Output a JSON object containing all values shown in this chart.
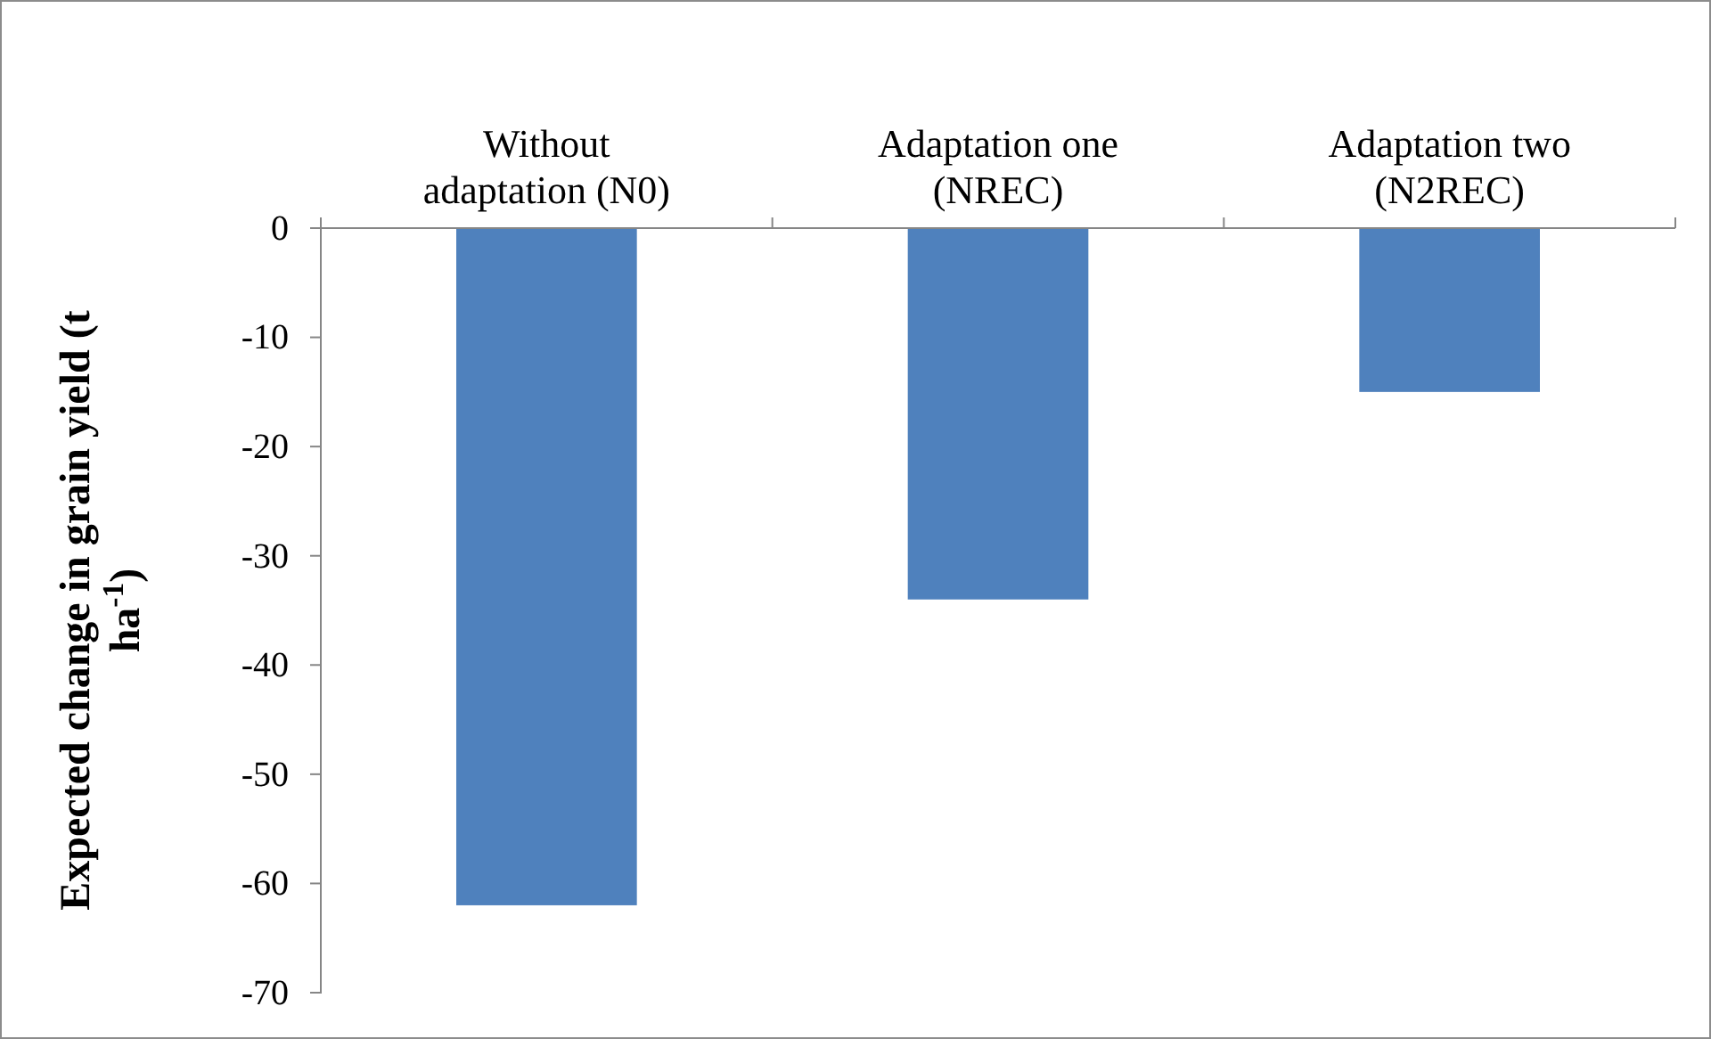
{
  "chart_data": {
    "type": "bar",
    "categories": [
      "Without adaptation (N0)",
      "Adaptation one (NREC)",
      "Adaptation two (N2REC)"
    ],
    "values": [
      -62,
      -34,
      -15
    ],
    "color": "#4f81bd",
    "ylabel": "Expected change in grain yield (t ha$^{-1}$)",
    "ylim": [
      -70,
      0
    ],
    "yticks": [
      0,
      -10,
      -20,
      -30,
      -40,
      -50,
      -60,
      -70
    ],
    "grid": false
  }
}
